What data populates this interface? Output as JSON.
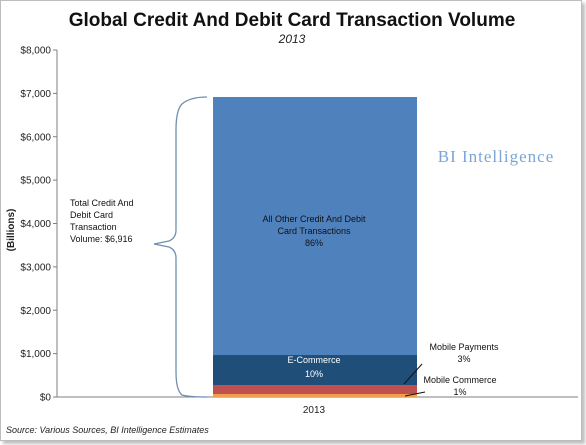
{
  "chart_data": {
    "type": "bar",
    "stacked": true,
    "title": "Global Credit And Debit Card Transaction Volume",
    "subtitle": "2013",
    "ylabel": "(Billions)",
    "ylim": [
      0,
      8000
    ],
    "yticks": [
      "$0",
      "$1,000",
      "$2,000",
      "$3,000",
      "$4,000",
      "$5,000",
      "$6,000",
      "$7,000",
      "$8,000"
    ],
    "categories": [
      "2013"
    ],
    "series": [
      {
        "name": "Mobile Commerce",
        "values": [
          69
        ],
        "color": "#f0a04b"
      },
      {
        "name": "Mobile Payments",
        "values": [
          207
        ],
        "color": "#c0504d"
      },
      {
        "name": "E-Commerce",
        "values": [
          692
        ],
        "color": "#1f4e79"
      },
      {
        "name": "All Other Credit And Debit Card Transactions",
        "values": [
          5948
        ],
        "color": "#4f81bd"
      }
    ],
    "segment_labels": {
      "all_other_1": "All Other Credit And Debit",
      "all_other_2": "Card Transactions",
      "all_other_pct": "86%",
      "ecommerce": "E-Commerce",
      "ecommerce_pct": "10%"
    },
    "annotations": {
      "mobile_payments": "Mobile Payments",
      "mobile_payments_pct": "3%",
      "mobile_commerce": "Mobile Commerce",
      "mobile_commerce_pct": "1%",
      "total_line1": "Total Credit And",
      "total_line2": "Debit Card",
      "total_line3": "Transaction",
      "total_line4": "Volume: $6,916"
    },
    "grid": false,
    "legend": "none"
  },
  "watermark": "BI Intelligence",
  "source": "Source: Various Sources, BI Intelligence Estimates"
}
